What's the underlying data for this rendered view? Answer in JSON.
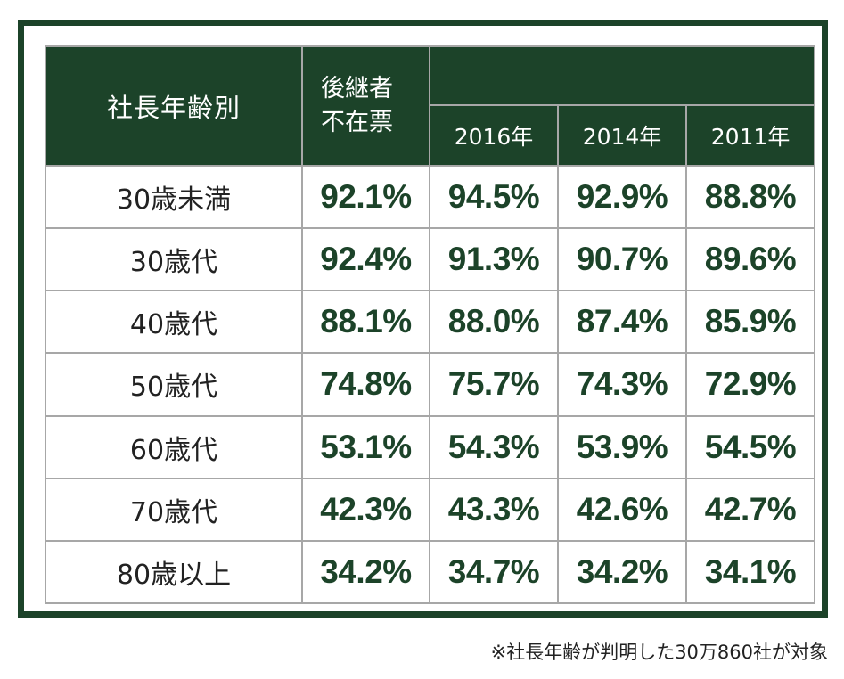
{
  "chart_data": {
    "type": "table",
    "header": {
      "age_label": "社長年齢別",
      "absent_label_line1": "後継者",
      "absent_label_line2": "不在票",
      "years": [
        "2016年",
        "2014年",
        "2011年"
      ]
    },
    "rows": [
      {
        "label": "30歳未満",
        "values": [
          "92.1%",
          "94.5%",
          "92.9%",
          "88.8%"
        ]
      },
      {
        "label": "30歳代",
        "values": [
          "92.4%",
          "91.3%",
          "90.7%",
          "89.6%"
        ]
      },
      {
        "label": "40歳代",
        "values": [
          "88.1%",
          "88.0%",
          "87.4%",
          "85.9%"
        ]
      },
      {
        "label": "50歳代",
        "values": [
          "74.8%",
          "75.7%",
          "74.3%",
          "72.9%"
        ]
      },
      {
        "label": "60歳代",
        "values": [
          "53.1%",
          "54.3%",
          "53.9%",
          "54.5%"
        ]
      },
      {
        "label": "70歳代",
        "values": [
          "42.3%",
          "43.3%",
          "42.6%",
          "42.7%"
        ]
      },
      {
        "label": "80歳以上",
        "values": [
          "34.2%",
          "34.7%",
          "34.2%",
          "34.1%"
        ]
      }
    ]
  },
  "footnote": "※社長年齢が判明した30万860社が対象",
  "colors": {
    "header_bg": "#1c4329",
    "value_text": "#1c4329",
    "grid_line": "#a7a7a7"
  }
}
